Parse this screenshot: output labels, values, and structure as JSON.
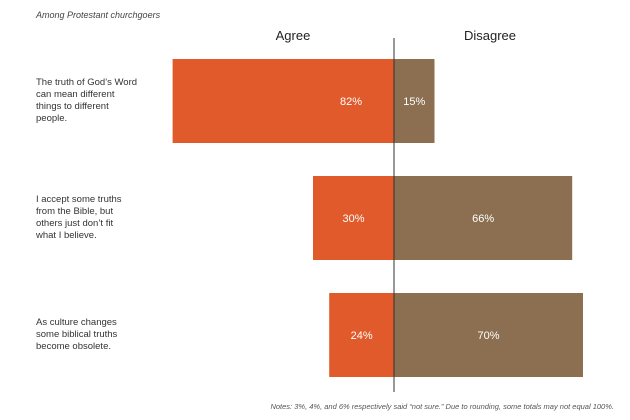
{
  "chart_data": {
    "type": "bar",
    "orientation": "diverging-horizontal",
    "subtitle": "Among Protestant churchgoers",
    "column_headers": {
      "agree": "Agree",
      "disagree": "Disagree"
    },
    "categories": [
      [
        "The truth of God’s Word",
        "can mean different",
        "things to different",
        "people."
      ],
      [
        "I accept some truths",
        "from the Bible, but",
        "others just don’t fit",
        "what I believe."
      ],
      [
        "As culture changes",
        "some biblical truths",
        "become obsolete."
      ]
    ],
    "series": [
      {
        "name": "Agree",
        "color": "#e05a2b",
        "values": [
          82,
          30,
          24
        ],
        "labels": [
          "82%",
          "30%",
          "24%"
        ]
      },
      {
        "name": "Disagree",
        "color": "#8b6f50",
        "values": [
          15,
          66,
          70
        ],
        "labels": [
          "15%",
          "66%",
          "70%"
        ]
      }
    ],
    "note": "Notes: 3%, 4%, and 6% respectively said “not sure.” Due to rounding, some totals may not equal 100%."
  }
}
